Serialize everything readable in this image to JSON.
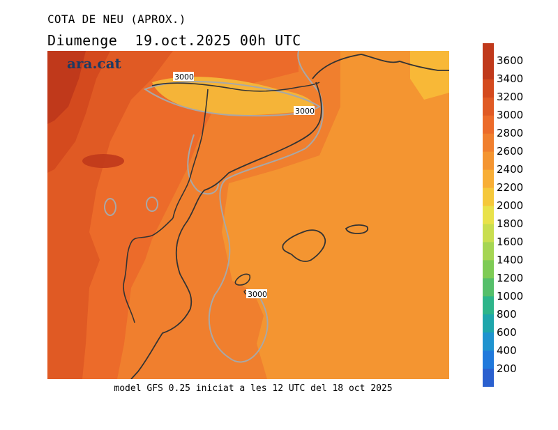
{
  "title": "COTA DE NEU (APROX.)",
  "subtitle_day": "Diumenge",
  "subtitle_date": "19.oct.2025 00h UTC",
  "footer": "model GFS 0.25 iniciat a les 12 UTC del 18 oct 2025",
  "logo": "ara.cat",
  "contour_labels": [
    "3000",
    "3000",
    "3000"
  ],
  "legend": {
    "labels": [
      "3600",
      "3400",
      "3200",
      "3000",
      "2800",
      "2600",
      "2400",
      "2200",
      "2000",
      "1800",
      "1600",
      "1400",
      "1200",
      "1000",
      "800",
      "600",
      "400",
      "200"
    ],
    "colors": [
      "#c0391b",
      "#d44a1e",
      "#e05a24",
      "#ec6b2a",
      "#f07f2e",
      "#f49531",
      "#f8ae36",
      "#f5c83b",
      "#e9e24a",
      "#c9de4f",
      "#a5d553",
      "#7ecb55",
      "#55bf6a",
      "#2db58a",
      "#1ea6ab",
      "#1f93cf",
      "#2079dc",
      "#2a60cf"
    ]
  }
}
